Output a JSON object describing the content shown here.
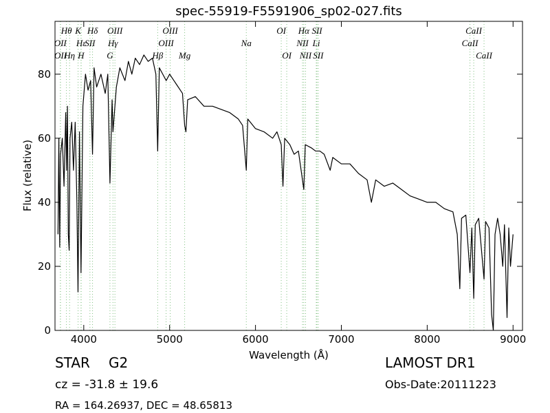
{
  "chart_data": {
    "type": "line",
    "title": "spec-55919-F5591906_sp02-027.fits",
    "x_label": "Wavelength (Å)",
    "y_label": "Flux (relative)",
    "xlim": [
      3665,
      9110
    ],
    "ylim": [
      0,
      96.5
    ],
    "xticks": [
      4000,
      5000,
      6000,
      7000,
      8000,
      9000
    ],
    "yticks": [
      0,
      20,
      40,
      60,
      80
    ],
    "color": "#000000",
    "x": [
      3700,
      3710,
      3720,
      3730,
      3750,
      3770,
      3790,
      3800,
      3810,
      3820,
      3830,
      3840,
      3860,
      3880,
      3900,
      3920,
      3933,
      3950,
      3968,
      3990,
      4020,
      4050,
      4080,
      4102,
      4120,
      4150,
      4200,
      4250,
      4280,
      4305,
      4330,
      4340,
      4380,
      4420,
      4480,
      4520,
      4560,
      4600,
      4650,
      4700,
      4750,
      4800,
      4840,
      4861,
      4880,
      4920,
      4960,
      5000,
      5050,
      5100,
      5150,
      5175,
      5190,
      5210,
      5300,
      5400,
      5500,
      5600,
      5700,
      5800,
      5850,
      5893,
      5910,
      6000,
      6100,
      6200,
      6250,
      6300,
      6320,
      6340,
      6400,
      6450,
      6500,
      6563,
      6580,
      6650,
      6700,
      6750,
      6800,
      6870,
      6900,
      7000,
      7100,
      7200,
      7300,
      7350,
      7400,
      7500,
      7600,
      7700,
      7800,
      7900,
      8000,
      8100,
      8200,
      8300,
      8350,
      8380,
      8400,
      8450,
      8498,
      8520,
      8542,
      8560,
      8600,
      8662,
      8680,
      8720,
      8750,
      8770,
      8790,
      8820,
      8850,
      8880,
      8900,
      8930,
      8950,
      8970,
      9000
    ],
    "values": [
      30,
      60,
      26,
      55,
      60,
      45,
      68,
      50,
      70,
      30,
      25,
      60,
      65,
      50,
      65,
      40,
      12,
      62,
      18,
      70,
      80,
      75,
      78,
      55,
      82,
      76,
      80,
      74,
      80,
      46,
      72,
      62,
      76,
      82,
      78,
      84,
      80,
      85,
      83,
      86,
      84,
      85,
      80,
      56,
      82,
      80,
      78,
      80,
      78,
      76,
      74,
      64,
      62,
      72,
      73,
      70,
      70,
      69,
      68,
      66,
      64,
      50,
      66,
      63,
      62,
      60,
      62,
      58,
      45,
      60,
      58,
      55,
      56,
      44,
      58,
      57,
      56,
      56,
      55,
      50,
      54,
      52,
      52,
      49,
      47,
      40,
      47,
      45,
      46,
      44,
      42,
      41,
      40,
      40,
      38,
      37,
      30,
      13,
      35,
      36,
      18,
      32,
      10,
      33,
      35,
      16,
      34,
      32,
      5,
      0,
      30,
      35,
      30,
      20,
      33,
      4,
      32,
      20,
      30
    ],
    "line_color": "#7fbf7f",
    "spectral_lines": [
      [
        {
          "x": 3798,
          "label": "Hθ"
        },
        {
          "x": 3934,
          "label": "K"
        },
        {
          "x": 4102,
          "label": "Hδ"
        },
        {
          "x": 4363,
          "label": "OIII"
        },
        {
          "x": 5007,
          "label": "OIII"
        },
        {
          "x": 6300,
          "label": "OI"
        },
        {
          "x": 6563,
          "label": "Hα"
        },
        {
          "x": 6716,
          "label": "SII"
        },
        {
          "x": 8542,
          "label": "CaII"
        }
      ],
      [
        {
          "x": 3727,
          "label": "OII"
        },
        {
          "x": 3970,
          "label": "Hε"
        },
        {
          "x": 4072,
          "label": "SII"
        },
        {
          "x": 4340,
          "label": "Hγ"
        },
        {
          "x": 4959,
          "label": "OIII"
        },
        {
          "x": 5893,
          "label": "Na"
        },
        {
          "x": 6548,
          "label": "NII"
        },
        {
          "x": 6708,
          "label": "Li"
        },
        {
          "x": 8498,
          "label": "CaII"
        }
      ],
      [
        {
          "x": 3729,
          "label": "OII"
        },
        {
          "x": 3835,
          "label": "Hη"
        },
        {
          "x": 3968,
          "label": "H"
        },
        {
          "x": 4305,
          "label": "G"
        },
        {
          "x": 4861,
          "label": "Hβ"
        },
        {
          "x": 5175,
          "label": "Mg"
        },
        {
          "x": 6364,
          "label": "OI"
        },
        {
          "x": 6583,
          "label": "NII"
        },
        {
          "x": 6731,
          "label": "SII"
        },
        {
          "x": 8662,
          "label": "CaII"
        }
      ]
    ],
    "object_class": "STAR",
    "subclass": "G2",
    "redshift": "cz = -31.8 ± 19.6",
    "coordinates": "RA = 164.26937, DEC = 48.65813",
    "survey": "LAMOST DR1",
    "obs_date": "Obs-Date:20111223"
  }
}
